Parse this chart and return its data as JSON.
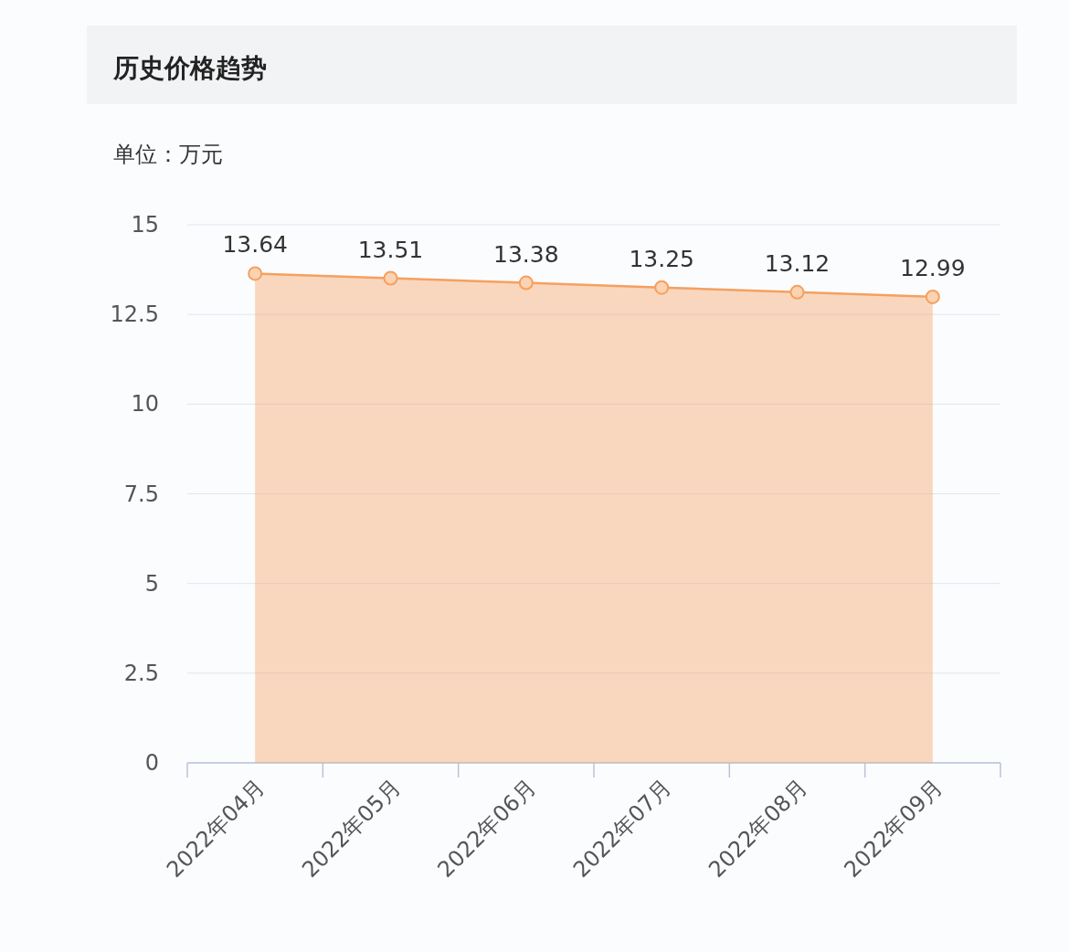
{
  "chart_data": {
    "type": "area",
    "title": "历史价格趋势",
    "subtitle": "单位：万元",
    "categories": [
      "2022年04月",
      "2022年05月",
      "2022年06月",
      "2022年07月",
      "2022年08月",
      "2022年09月"
    ],
    "series": [
      {
        "color": "#f5a05f",
        "values": [
          13.64,
          13.51,
          13.38,
          13.25,
          13.12,
          12.99
        ]
      }
    ],
    "ylim": [
      0,
      15
    ],
    "yticks": [
      0,
      2.5,
      5,
      7.5,
      10,
      12.5,
      15
    ],
    "grid": "y",
    "marker": "circle",
    "data_labels": true
  }
}
